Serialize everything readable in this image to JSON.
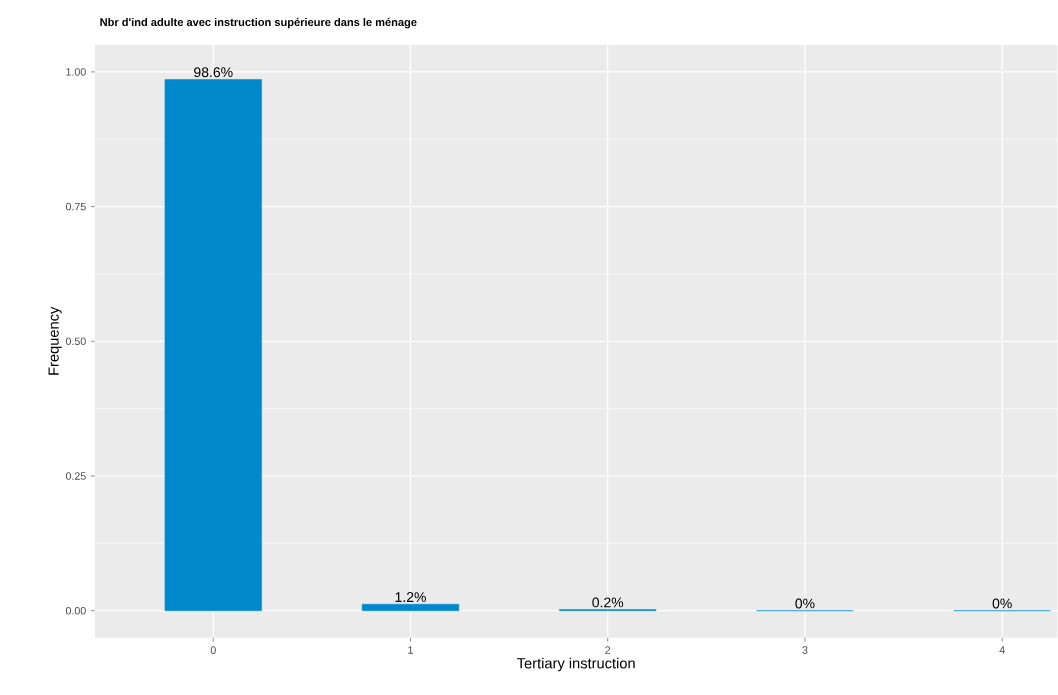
{
  "chart_data": {
    "type": "bar",
    "title": "Nbr d'ind adulte avec instruction supérieure dans le ménage",
    "xlabel": "Tertiary instruction",
    "ylabel": "Frequency",
    "categories": [
      "0",
      "1",
      "2",
      "3",
      "4"
    ],
    "values": [
      0.986,
      0.012,
      0.002,
      0,
      0
    ],
    "value_labels": [
      "98.6%",
      "1.2%",
      "0.2%",
      "0%",
      "0%"
    ],
    "color": "#0088cc",
    "ylim": [
      -0.05,
      1.05
    ],
    "yticks": [
      {
        "value": 0,
        "label": "0.00"
      },
      {
        "value": 0.25,
        "label": "0.25"
      },
      {
        "value": 0.5,
        "label": "0.50"
      },
      {
        "value": 0.75,
        "label": "0.75"
      },
      {
        "value": 1,
        "label": "1.00"
      }
    ],
    "grid": true
  }
}
